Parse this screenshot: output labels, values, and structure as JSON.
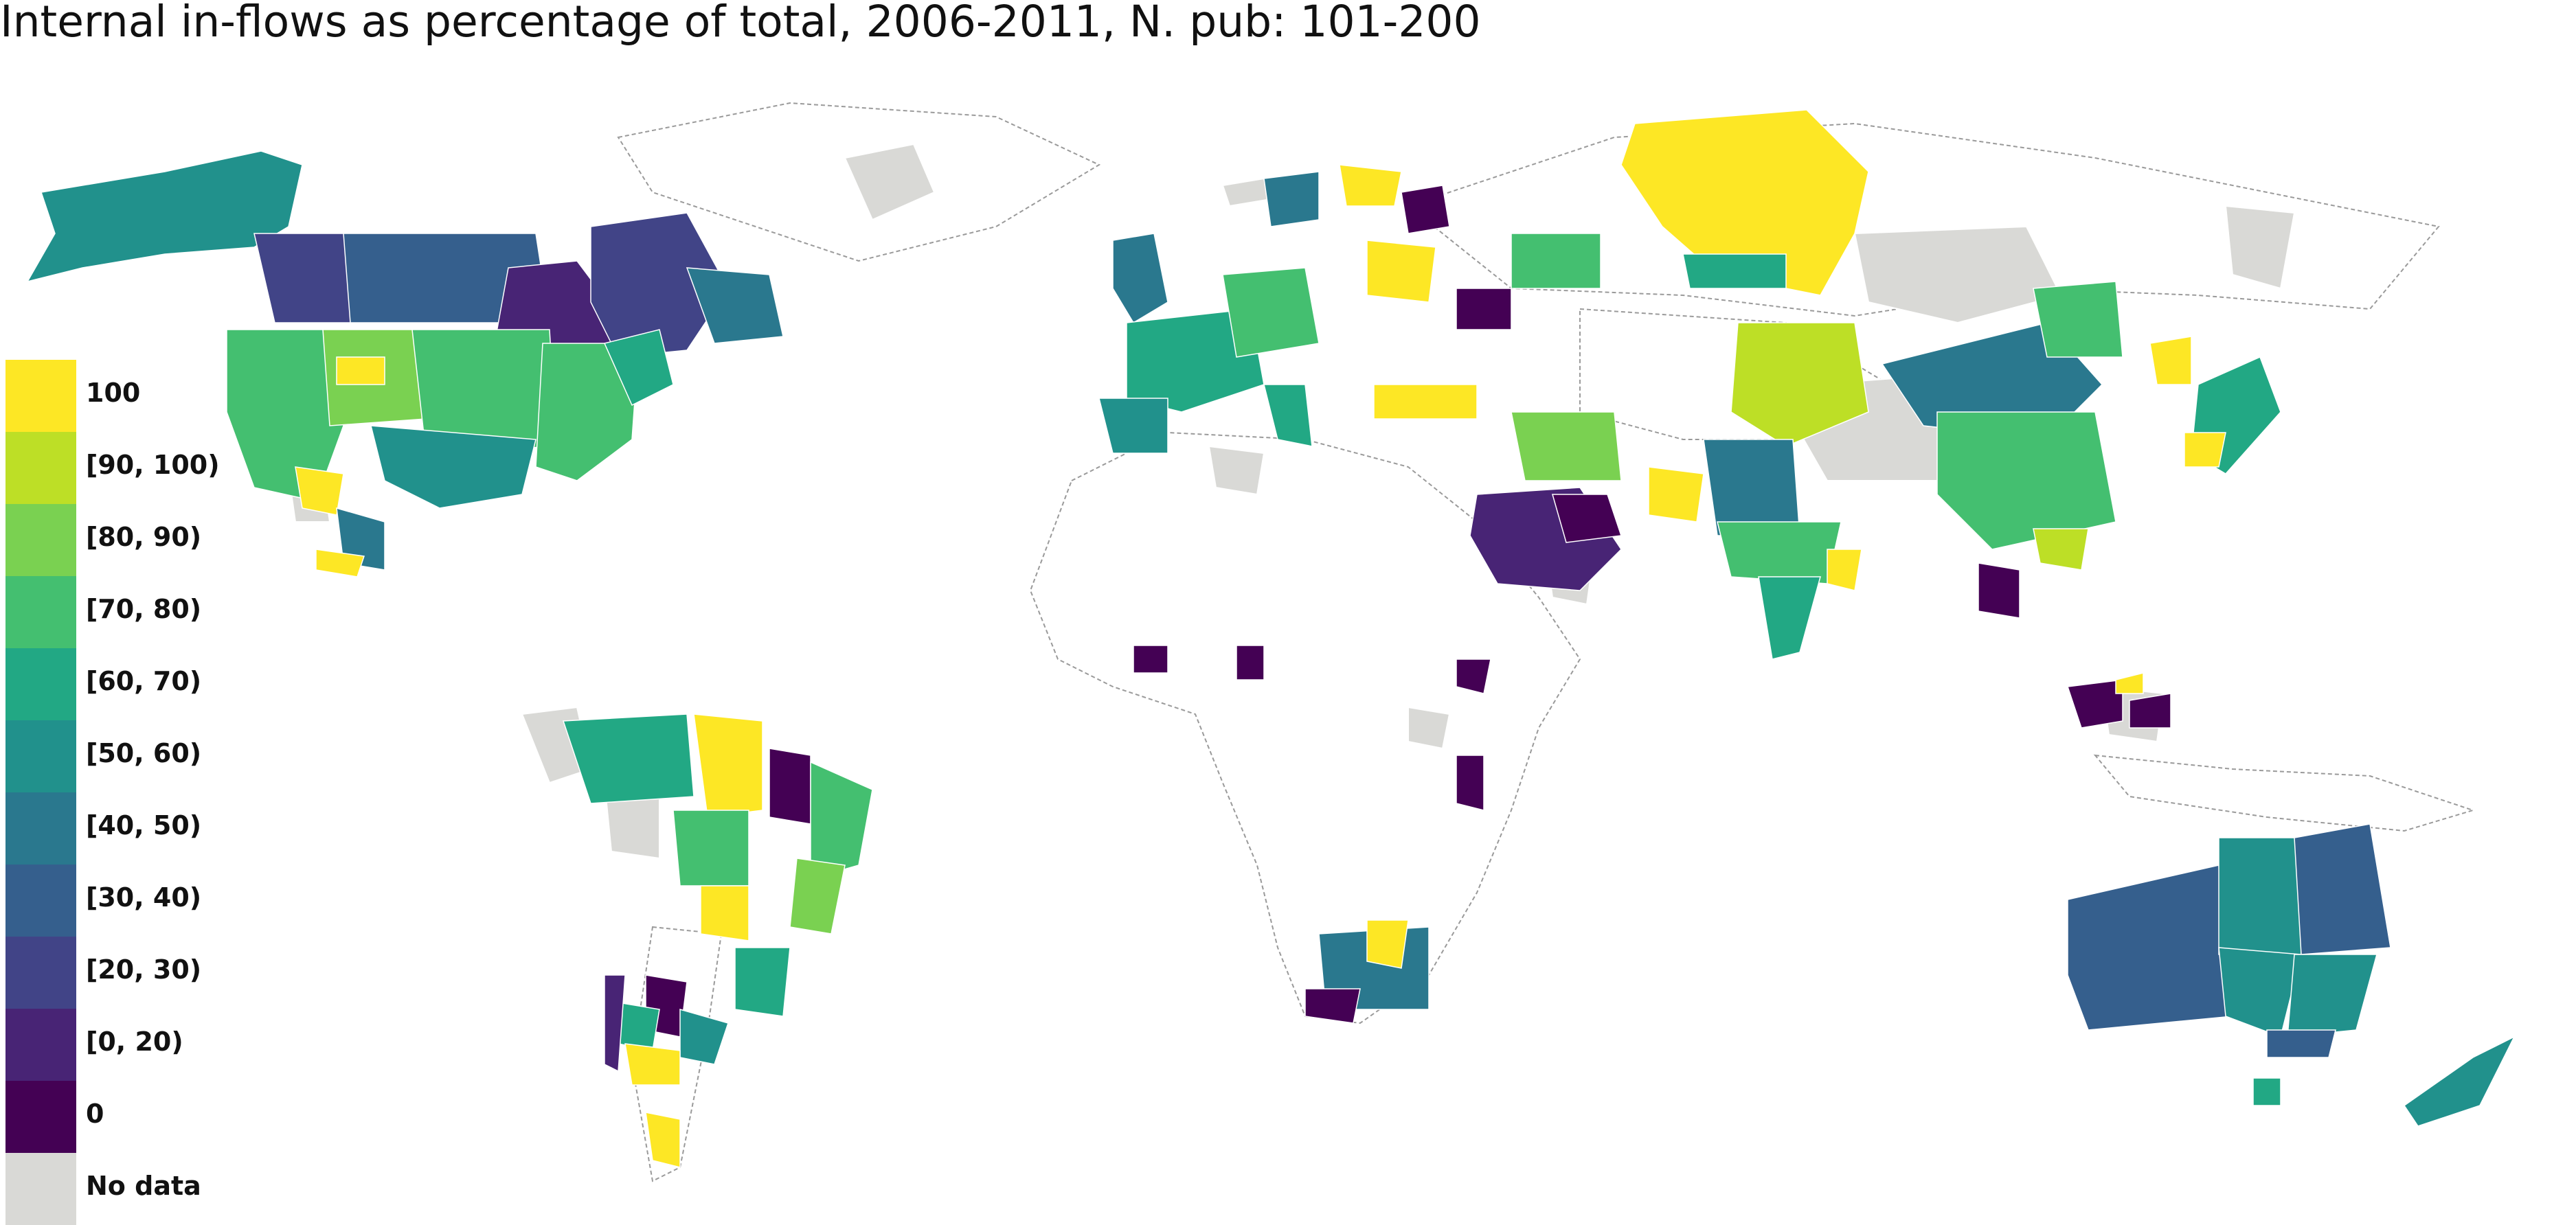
{
  "title": "Internal in-flows as percentage of total, 2006-2011, N. pub: 101-200",
  "legend": [
    {
      "label": "100",
      "color": "#fde725"
    },
    {
      "label": "[90, 100)",
      "color": "#bddf26"
    },
    {
      "label": "[80, 90)",
      "color": "#7ad151"
    },
    {
      "label": "[70, 80)",
      "color": "#44bf70"
    },
    {
      "label": "[60, 70)",
      "color": "#22a884"
    },
    {
      "label": "[50, 60)",
      "color": "#21918c"
    },
    {
      "label": "[40, 50)",
      "color": "#2a788e"
    },
    {
      "label": "[30, 40)",
      "color": "#355f8d"
    },
    {
      "label": "[20, 30)",
      "color": "#414487"
    },
    {
      "label": "[0, 20)",
      "color": "#482475"
    },
    {
      "label": "0",
      "color": "#440154"
    },
    {
      "label": "No data",
      "color": "#d9d9d6"
    }
  ],
  "colors": {
    "empty": "#ffffff",
    "border": "#9a9a9a"
  }
}
